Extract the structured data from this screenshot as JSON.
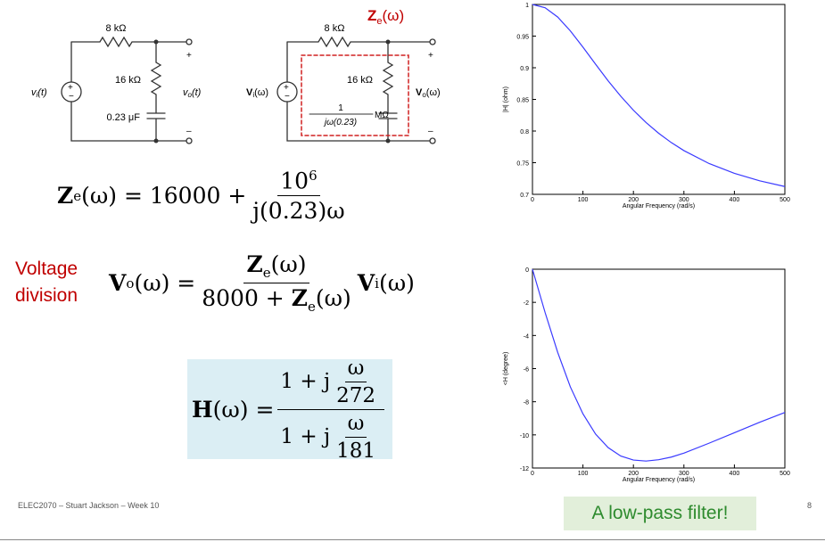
{
  "circuit_left": {
    "r1": "8 kΩ",
    "r2": "16 kΩ",
    "c": "0.23 μF",
    "vin": {
      "sym": "v",
      "sub": "i",
      "arg": "(t)"
    },
    "vout": {
      "sym": "v",
      "sub": "o",
      "arg": "(t)"
    },
    "plus": "+",
    "minus": "–"
  },
  "circuit_right": {
    "r1": "8 kΩ",
    "r2": "16 kΩ",
    "c_num": "1",
    "c_den": "jω(0.23)",
    "c_unit": "MΩ",
    "ze": {
      "sym": "Z",
      "sub": "e",
      "arg": "(ω)"
    },
    "vin": {
      "sym": "V",
      "sub": "i",
      "arg": "(ω)"
    },
    "vout": {
      "sym": "V",
      "sub": "o",
      "arg": "(ω)"
    },
    "plus": "+",
    "minus": "–"
  },
  "eq_ze": {
    "sym": "Z",
    "sub": "e",
    "arg": "(ω) = 16000 +",
    "num_base": "10",
    "num_exp": "6",
    "den": "j(0.23)ω"
  },
  "voltage_division": [
    "Voltage",
    "division"
  ],
  "eq_vo": {
    "sym": "V",
    "sub": "o",
    "arg": "(ω) =",
    "num_sym": "Z",
    "num_sub": "e",
    "num_arg": "(ω)",
    "den_pre": "8000 + ",
    "den_sym": "Z",
    "den_sub": "e",
    "den_arg": "(ω)",
    "rhs_sym": "V",
    "rhs_sub": "i",
    "rhs_arg": "(ω)"
  },
  "eq_h": {
    "sym": "H",
    "arg": "(ω) =",
    "num_pre": "1 + j",
    "num_w": "ω",
    "num_c": "272",
    "den_pre": "1 + j",
    "den_w": "ω",
    "den_c": "181"
  },
  "footer": "ELEC2070 – Stuart Jackson – Week 10",
  "page_number": "8",
  "callout": "A low-pass filter!",
  "chart_data": [
    {
      "type": "line",
      "x_label": "Angular Frequency (rad/s)",
      "y_label": "|H| (ohm)",
      "x": [
        0,
        25,
        50,
        75,
        100,
        125,
        150,
        175,
        200,
        225,
        250,
        275,
        300,
        350,
        400,
        450,
        500
      ],
      "series": [
        {
          "color": "#3a3aff",
          "values": [
            1,
            0.9948,
            0.9801,
            0.9583,
            0.9326,
            0.9056,
            0.8793,
            0.8549,
            0.8329,
            0.8135,
            0.7965,
            0.7818,
            0.7691,
            0.7486,
            0.7332,
            0.7214,
            0.7123
          ]
        }
      ],
      "xlim": [
        0,
        500
      ],
      "xticks": [
        0,
        100,
        200,
        300,
        400,
        500
      ],
      "ylim": [
        0.7,
        1
      ],
      "yticks": [
        0.7,
        0.75,
        0.8,
        0.85,
        0.9,
        0.95,
        1
      ]
    },
    {
      "type": "line",
      "x_label": "Angular Frequency (rad/s)",
      "y_label": "<H (degree)",
      "x": [
        0,
        25,
        50,
        75,
        100,
        125,
        150,
        175,
        200,
        225,
        250,
        275,
        300,
        350,
        400,
        450,
        500
      ],
      "series": [
        {
          "color": "#3a3aff",
          "values": [
            0,
            -2.61,
            -5.02,
            -7.1,
            -8.73,
            -9.95,
            -10.77,
            -11.28,
            -11.52,
            -11.58,
            -11.5,
            -11.34,
            -11.1,
            -10.5,
            -9.87,
            -9.24,
            -8.65
          ]
        }
      ],
      "xlim": [
        0,
        500
      ],
      "xticks": [
        0,
        100,
        200,
        300,
        400,
        500
      ],
      "ylim": [
        -12,
        0
      ],
      "yticks": [
        -12,
        -10,
        -8,
        -6,
        -4,
        -2,
        0
      ]
    }
  ]
}
